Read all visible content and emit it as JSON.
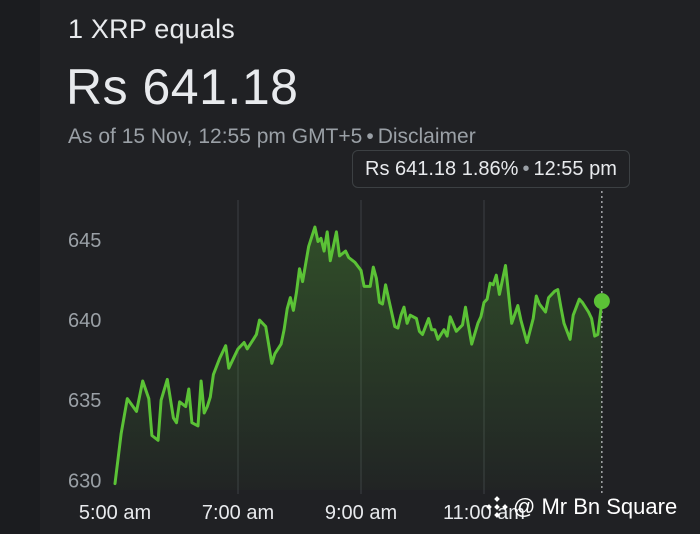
{
  "header": {
    "title": "1 XRP equals",
    "price": "Rs 641.18",
    "as_of": "As of 15 Nov, 12:55 pm GMT+5",
    "separator": "•",
    "disclaimer": "Disclaimer"
  },
  "tooltip": {
    "value": "Rs 641.18",
    "change": "1.86%",
    "separator": "•",
    "time": "12:55 pm"
  },
  "watermark": {
    "text": "@ Mr Bn Square"
  },
  "colors": {
    "line": "#5bc236",
    "point": "#5bc236",
    "grid": "#3c4043",
    "axis_text": "#9aa0a6"
  },
  "chart_data": {
    "type": "line",
    "x_labels": [
      "5:00 am",
      "7:00 am",
      "9:00 am",
      "11:00 am"
    ],
    "x_tick_hours": [
      5,
      7,
      9,
      11
    ],
    "y_ticks": [
      645,
      640,
      635,
      630
    ],
    "xlim": [
      5.0,
      13.0
    ],
    "ylim": [
      629.4,
      647.8
    ],
    "current_time": 12.9167,
    "current_value": 641.18,
    "series": [
      {
        "x": [
          5.0,
          5.1,
          5.2,
          5.35,
          5.45,
          5.55,
          5.6,
          5.7,
          5.75,
          5.85,
          5.95,
          6.0,
          6.05,
          6.15,
          6.2,
          6.25,
          6.35,
          6.4,
          6.45,
          6.5,
          6.55,
          6.6,
          6.7,
          6.8,
          6.85,
          6.95,
          7.0,
          7.1,
          7.15,
          7.25,
          7.3,
          7.35,
          7.45,
          7.55,
          7.6,
          7.7,
          7.75,
          7.8,
          7.85,
          7.9,
          7.95,
          8.0,
          8.05,
          8.15,
          8.25,
          8.3,
          8.35,
          8.4,
          8.45,
          8.5,
          8.6,
          8.65,
          8.75,
          8.8,
          8.9,
          9.0,
          9.05,
          9.15,
          9.2,
          9.25,
          9.3,
          9.35,
          9.4,
          9.45,
          9.55,
          9.6,
          9.65,
          9.7,
          9.75,
          9.8,
          9.9,
          9.95,
          10.0,
          10.1,
          10.15,
          10.2,
          10.25,
          10.35,
          10.4,
          10.45,
          10.55,
          10.65,
          10.7,
          10.75,
          10.8,
          10.9,
          10.95,
          11.0,
          11.05,
          11.1,
          11.15,
          11.2,
          11.25,
          11.35,
          11.4,
          11.45,
          11.55,
          11.6,
          11.7,
          11.8,
          11.85,
          11.9,
          12.0,
          12.05,
          12.15,
          12.2,
          12.25,
          12.3,
          12.4,
          12.45,
          12.55,
          12.6,
          12.7,
          12.75,
          12.8,
          12.85,
          12.9167
        ],
        "y": [
          629.8,
          632.9,
          635.1,
          634.3,
          636.2,
          635.1,
          632.8,
          632.5,
          635.0,
          636.3,
          633.9,
          633.6,
          634.9,
          634.6,
          635.7,
          633.6,
          633.4,
          636.2,
          634.2,
          634.6,
          635.2,
          636.6,
          637.6,
          638.4,
          637.0,
          637.8,
          638.2,
          638.6,
          638.2,
          638.8,
          639.1,
          640.0,
          639.6,
          637.3,
          637.9,
          638.5,
          639.4,
          640.7,
          641.4,
          640.6,
          641.7,
          643.2,
          642.4,
          644.6,
          645.8,
          644.9,
          645.1,
          644.3,
          645.5,
          643.7,
          645.5,
          644.0,
          644.3,
          643.9,
          643.6,
          643.1,
          642.1,
          642.1,
          643.3,
          642.6,
          641.1,
          641.0,
          642.2,
          641.3,
          639.6,
          639.5,
          640.3,
          640.8,
          639.8,
          640.3,
          640.1,
          639.3,
          639.1,
          640.1,
          639.4,
          639.4,
          638.8,
          639.4,
          639.0,
          640.2,
          639.3,
          639.7,
          640.8,
          639.6,
          638.5,
          639.8,
          640.2,
          641.1,
          641.3,
          642.3,
          642.2,
          642.8,
          641.6,
          643.4,
          641.6,
          639.8,
          640.9,
          640.0,
          638.6,
          640.1,
          641.5,
          641.0,
          640.5,
          641.4,
          641.8,
          641.9,
          640.8,
          639.8,
          638.8,
          640.3,
          641.3,
          641.1,
          640.5,
          640.1,
          639.0,
          639.1,
          641.18
        ]
      }
    ]
  }
}
